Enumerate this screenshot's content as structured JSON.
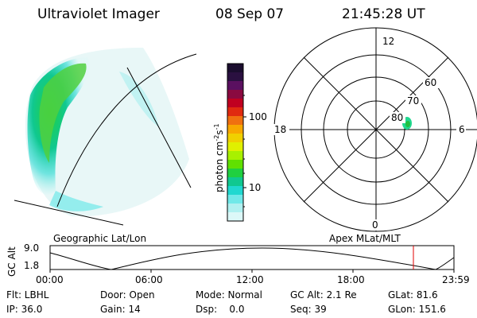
{
  "header": {
    "title": "Ultraviolet Imager",
    "date": "08 Sep 07",
    "time": "21:45:28 UT"
  },
  "colorbar": {
    "unit_label": "photon cm",
    "unit_exp1": "-2",
    "unit_mid": "s",
    "unit_exp2": "-1",
    "ticks": [
      "100",
      "10"
    ],
    "colors": [
      "#1a0d2e",
      "#2a1040",
      "#5a1060",
      "#8a0a40",
      "#c00020",
      "#e02a10",
      "#f07010",
      "#f8a800",
      "#f0d000",
      "#e0f000",
      "#a8f000",
      "#60e000",
      "#20d040",
      "#10c890",
      "#20d8d0",
      "#70e8e8",
      "#b0f0f0",
      "#dcf8f8"
    ]
  },
  "polar": {
    "mlt_labels": [
      "12",
      "18",
      "6",
      "0"
    ],
    "lat_labels": [
      "60",
      "70",
      "80"
    ]
  },
  "timeline": {
    "y_axis_label": "GC Alt",
    "y_ticks": [
      "9.0",
      "1.8"
    ],
    "left_title": "Geographic Lat/Lon",
    "right_title": "Apex MLat/MLT",
    "time_ticks": [
      "00:00",
      "06:00",
      "12:00",
      "18:00",
      "23:59"
    ],
    "marker_color": "#e00000"
  },
  "footer": {
    "row1": {
      "flt": "Flt: LBHL",
      "door": "Door: Open",
      "mode": "Mode: Normal",
      "gcalt": "GC Alt: 2.1 Re",
      "glat": "GLat: 81.6"
    },
    "row2": {
      "ip": "IP: 36.0",
      "gain": "Gain: 14",
      "dsp": "Dsp:    0.0",
      "seq": "Seq: 39",
      "glon": "GLon: 151.6"
    }
  }
}
